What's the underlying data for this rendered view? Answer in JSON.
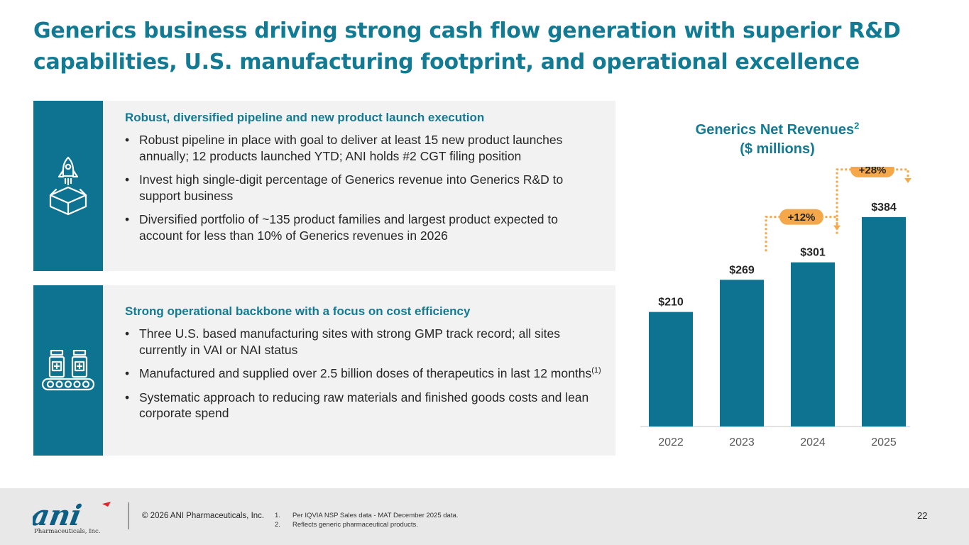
{
  "slide_title": "Generics business driving strong cash flow generation with superior R&D capabilities, U.S. manufacturing footprint, and operational excellence",
  "panels": [
    {
      "heading": "Robust, diversified pipeline and new product launch execution",
      "icon": "rocket-box-icon",
      "bullets": [
        "Robust pipeline in place with goal to deliver at least 15 new product launches annually; 12 products launched YTD; ANI holds #2 CGT filing position",
        "Invest high single-digit percentage of Generics revenue into Generics R&D to support business",
        "Diversified portfolio of ~135 product families and largest product expected to account for less than 10% of Generics revenues in 2026"
      ]
    },
    {
      "heading": "Strong operational backbone with a focus on cost efficiency",
      "icon": "manufacturing-conveyor-icon",
      "bullets": [
        "Three U.S. based manufacturing sites with strong GMP track record; all sites currently in VAI or NAI status",
        "Manufactured and supplied over 2.5 billion doses of therapeutics in last 12 months",
        "Systematic approach to reducing raw materials and finished goods costs and lean corporate spend"
      ],
      "bullet2_superscript": "(1)"
    }
  ],
  "chart_title": {
    "line1": "Generics Net Revenues",
    "superscript": "2",
    "line2": "($ millions)"
  },
  "chart_data": {
    "type": "bar",
    "title": "Generics Net Revenues ($ millions)",
    "categories": [
      "2022",
      "2023",
      "2024",
      "2025"
    ],
    "values": [
      210,
      269,
      301,
      384
    ],
    "data_labels": [
      "$210",
      "$269",
      "$301",
      "$384"
    ],
    "bar_color": "#0e7390",
    "growth_annotations": [
      {
        "from": "2023",
        "to": "2024",
        "label": "+12%"
      },
      {
        "from": "2024",
        "to": "2025",
        "label": "+28%"
      }
    ],
    "annotation_color": "#f5a84a"
  },
  "footer": {
    "logo_text": "ani",
    "logo_subtext": "Pharmaceuticals, Inc.",
    "copyright": "© 2026 ANI Pharmaceuticals, Inc.",
    "notes": [
      {
        "num": "1.",
        "text": "Per IQVIA NSP Sales data - MAT December 2025 data."
      },
      {
        "num": "2.",
        "text": "Reflects generic pharmaceutical products."
      }
    ],
    "page_number": "22"
  }
}
